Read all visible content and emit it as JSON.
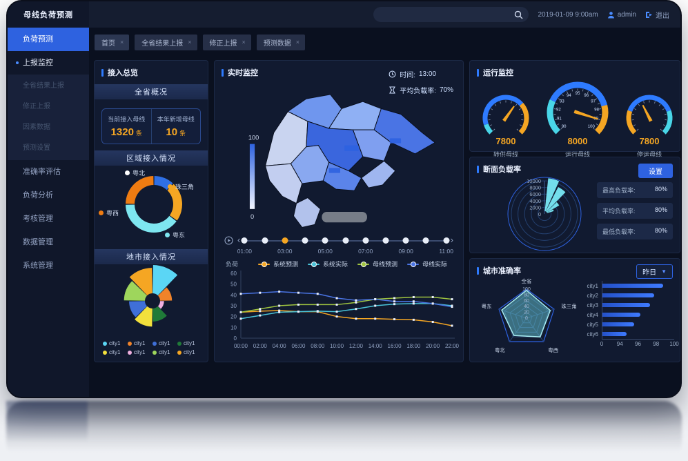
{
  "header": {
    "app_title": "母线负荷预测",
    "search_placeholder": "",
    "datetime": "2019-01-09 9:00am",
    "user": "admin",
    "logout_label": "退出"
  },
  "sidebar": {
    "items": [
      {
        "label": "负荷预测",
        "type": "active"
      },
      {
        "label": "上报监控",
        "type": "open"
      },
      {
        "label": "全省结果上报",
        "type": "sub"
      },
      {
        "label": "修正上报",
        "type": "sub"
      },
      {
        "label": "因素数据",
        "type": "sub"
      },
      {
        "label": "预测设置",
        "type": "sub"
      },
      {
        "label": "准确率评估",
        "type": "normal"
      },
      {
        "label": "负荷分析",
        "type": "normal"
      },
      {
        "label": "考核管理",
        "type": "normal"
      },
      {
        "label": "数据管理",
        "type": "normal"
      },
      {
        "label": "系统管理",
        "type": "normal"
      }
    ]
  },
  "tabs": [
    {
      "label": "首页"
    },
    {
      "label": "全省结果上报"
    },
    {
      "label": "修正上报"
    },
    {
      "label": "预测数据"
    }
  ],
  "access_panel": {
    "title": "接入总览",
    "sections": {
      "province": "全省概况",
      "region": "区域接入情况",
      "city": "地市接入情况"
    },
    "stats": [
      {
        "label": "当前接入母线",
        "value": "1320",
        "unit": "条"
      },
      {
        "label": "本年新增母线",
        "value": "10",
        "unit": "条"
      }
    ]
  },
  "realtime_panel": {
    "title": "实时监控",
    "time_label": "时间:",
    "time_value": "13:00",
    "load_label": "平均负载率:",
    "load_value": "70%",
    "map_scale_max": "100",
    "map_scale_min": "0",
    "timeline": {
      "labels": [
        "01:00",
        "03:00",
        "05:00",
        "07:00",
        "09:00",
        "11:00"
      ],
      "dot_count": 11,
      "active_index": 2
    }
  },
  "gauge_panel": {
    "title": "运行监控"
  },
  "section_panel": {
    "title": "断面负载率",
    "button": "设置",
    "stats": [
      {
        "label": "最高负载率",
        "value": "80%"
      },
      {
        "label": "平均负载率",
        "value": "80%"
      },
      {
        "label": "最低负载率",
        "value": "80%"
      }
    ]
  },
  "accuracy_panel": {
    "title": "城市准确率",
    "dropdown": "昨日"
  },
  "chart_data": [
    {
      "id": "region_donut",
      "type": "pie",
      "title": "区域接入情况",
      "labels": [
        "粤北",
        "珠三角",
        "粤东",
        "粤西"
      ],
      "values": [
        12,
        23,
        40,
        25
      ],
      "colors": [
        "#2f6fe4",
        "#f5a623",
        "#7ee6f0",
        "#ef7c12"
      ],
      "legend_colors": [
        "#ffffff",
        "#f5a623",
        "#7ee6f0",
        "#ef7c12"
      ]
    },
    {
      "id": "city_rose",
      "type": "pie",
      "subtype": "rose",
      "title": "地市接入情况",
      "labels": [
        "city1",
        "city1",
        "city1",
        "city1",
        "city1",
        "city1",
        "city1",
        "city1"
      ],
      "values": [
        100,
        42,
        14,
        46,
        64,
        56,
        74,
        90
      ],
      "colors": [
        "#5bd6f5",
        "#f0832a",
        "#f0b0e0",
        "#1f7a38",
        "#f2e03c",
        "#3f6fd8",
        "#9ed65c",
        "#f5a623"
      ],
      "legend_colors": [
        "#5bd6f5",
        "#f0832a",
        "#3f6fd8",
        "#1f7a38",
        "#f2e03c",
        "#f0b0e0",
        "#9ed65c",
        "#f5a623"
      ]
    },
    {
      "id": "load_lines",
      "type": "line",
      "ylabel": "负荷",
      "x": [
        "00:00",
        "02:00",
        "04:00",
        "06:00",
        "08:00",
        "10:00",
        "12:00",
        "14:00",
        "16:00",
        "18:00",
        "20:00",
        "22:00"
      ],
      "ylim": [
        0,
        60
      ],
      "yticks": [
        0,
        10,
        20,
        30,
        40,
        50,
        60
      ],
      "series": [
        {
          "name": "系统预测",
          "color": "#f5a623",
          "values": [
            24,
            25,
            25.5,
            24.5,
            24.5,
            20,
            18,
            18,
            17.5,
            17,
            15,
            11.5
          ]
        },
        {
          "name": "系统实际",
          "color": "#49c3d8",
          "values": [
            18,
            21,
            24,
            24.5,
            25,
            24.5,
            27,
            30,
            31.5,
            32,
            32,
            30
          ]
        },
        {
          "name": "母线预测",
          "color": "#9fc43f",
          "values": [
            24,
            27,
            30,
            31,
            31,
            31,
            33,
            36,
            37,
            38,
            38,
            36
          ]
        },
        {
          "name": "母线实际",
          "color": "#4a74e4",
          "values": [
            41,
            42,
            43,
            42,
            41,
            37,
            35,
            36,
            34,
            34,
            32,
            29
          ]
        }
      ]
    },
    {
      "id": "run_gauges",
      "type": "gauge",
      "gauges": [
        {
          "value": "7800",
          "label": "转供母线",
          "segments": [
            [
              "#49d6e8",
              0.1
            ],
            [
              "#2e7bff",
              0.58
            ],
            [
              "#f5a623",
              0.32
            ]
          ],
          "needle": 0.63
        },
        {
          "value": "8000",
          "label": "运行母线",
          "segments": [
            [
              "#49d6e8",
              0.26
            ],
            [
              "#2e7bff",
              0.52
            ],
            [
              "#f5a623",
              0.22
            ]
          ],
          "needle": 0.9,
          "tick_labels": [
            "90",
            "91",
            "92",
            "93",
            "94",
            "95",
            "96",
            "97",
            "98",
            "99",
            "100"
          ]
        },
        {
          "value": "7800",
          "label": "停运母线",
          "segments": [
            [
              "#f5a623",
              0.24
            ],
            [
              "#2e7bff",
              0.52
            ],
            [
              "#49d6e8",
              0.24
            ]
          ],
          "needle": 0.4
        }
      ]
    },
    {
      "id": "section_polar",
      "type": "polar-bar",
      "max": 10000,
      "radial_ticks": [
        "0",
        "2000",
        "4000",
        "6000",
        "8000",
        "10000"
      ],
      "wedges": [
        {
          "a1": 6,
          "a2": 24,
          "value": 10000
        },
        {
          "a1": 27,
          "a2": 44,
          "value": 8300
        },
        {
          "a1": 46,
          "a2": 60,
          "value": 4300
        },
        {
          "a1": 62,
          "a2": 73,
          "value": 2100
        }
      ],
      "color": "#79e8f5"
    },
    {
      "id": "city_radar",
      "type": "radar",
      "axes": [
        "全省",
        "珠三角",
        "粤西",
        "粤北",
        "粤东"
      ],
      "ticks": [
        "100",
        "80",
        "60",
        "40",
        "20",
        "0"
      ],
      "max": 100,
      "values": [
        96,
        86,
        80,
        74,
        90
      ],
      "fill": "#6fd8e4"
    },
    {
      "id": "city_bars",
      "type": "bar-horizontal",
      "categories": [
        "city1",
        "city2",
        "city3",
        "city4",
        "city5",
        "city6"
      ],
      "values": [
        98.8,
        97.8,
        97.3,
        96.2,
        95.5,
        94.7
      ],
      "xticks": [
        "0",
        "94",
        "96",
        "98",
        "100"
      ],
      "xlim": [
        92,
        100
      ],
      "color": "#2e62e0"
    }
  ]
}
